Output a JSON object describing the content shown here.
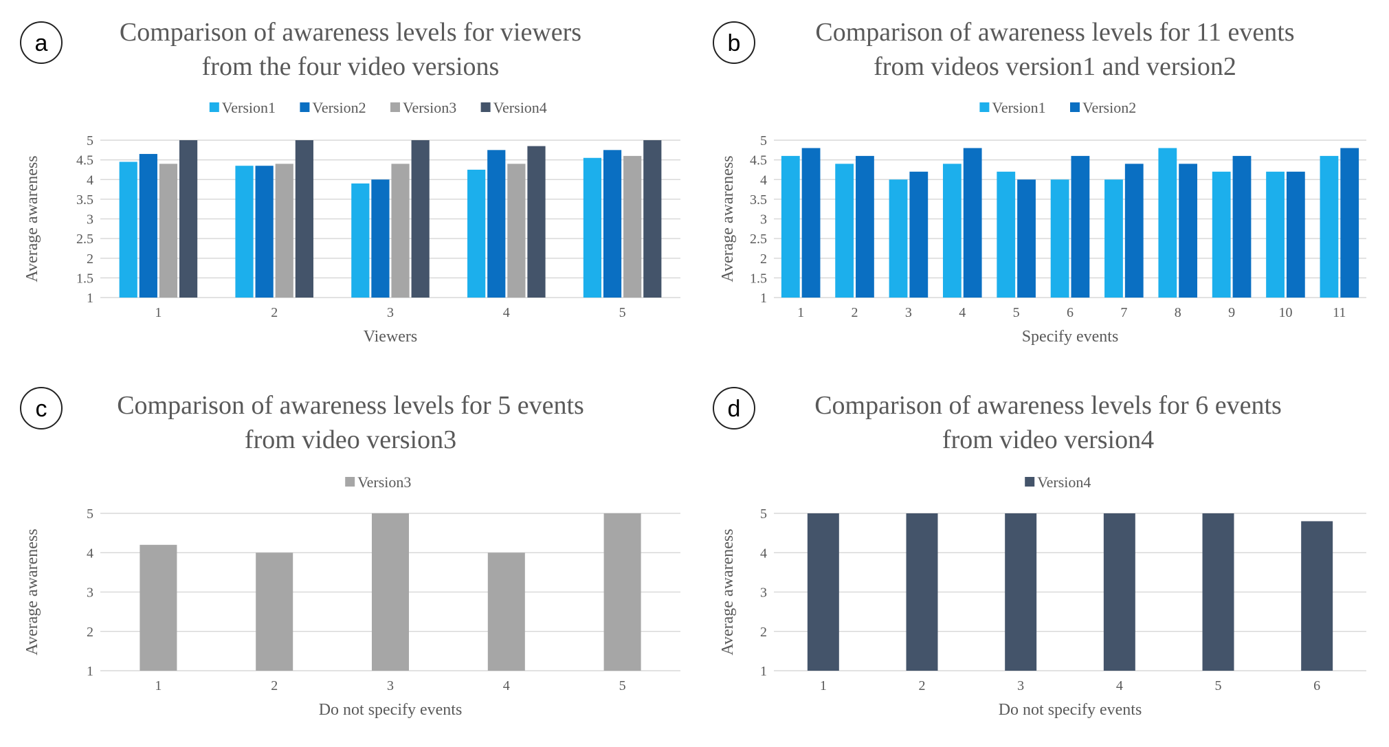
{
  "colors": {
    "version1": "#1CAFEC",
    "version2": "#0A6FC2",
    "version3": "#A6A6A6",
    "version4": "#44546A",
    "grid": "#D9D9D9",
    "text": "#595959",
    "title": "#595959"
  },
  "chart_data": [
    {
      "type": "bar",
      "panel_label": "a",
      "title_lines": [
        "Comparison of awareness levels for viewers",
        "from the four video versions"
      ],
      "xlabel": "Viewers",
      "ylabel": "Average awareness",
      "categories": [
        "1",
        "2",
        "3",
        "4",
        "5"
      ],
      "ylim": [
        1,
        5
      ],
      "yticks": [
        "1",
        "1.5",
        "2",
        "2.5",
        "3",
        "3.5",
        "4",
        "4.5",
        "5"
      ],
      "legend_position": "top-center",
      "series": [
        {
          "name": "Version1",
          "color_key": "version1",
          "values": [
            4.45,
            4.35,
            3.9,
            4.25,
            4.55
          ]
        },
        {
          "name": "Version2",
          "color_key": "version2",
          "values": [
            4.65,
            4.35,
            4.0,
            4.75,
            4.75
          ]
        },
        {
          "name": "Version3",
          "color_key": "version3",
          "values": [
            4.4,
            4.4,
            4.4,
            4.4,
            4.6
          ]
        },
        {
          "name": "Version4",
          "color_key": "version4",
          "values": [
            5.0,
            5.0,
            5.0,
            4.85,
            5.0
          ]
        }
      ]
    },
    {
      "type": "bar",
      "panel_label": "b",
      "title_lines": [
        "Comparison of awareness levels for 11 events",
        "from videos version1 and version2"
      ],
      "xlabel": "Specify events",
      "ylabel": "Average awareness",
      "categories": [
        "1",
        "2",
        "3",
        "4",
        "5",
        "6",
        "7",
        "8",
        "9",
        "10",
        "11"
      ],
      "ylim": [
        1,
        5
      ],
      "yticks": [
        "1",
        "1.5",
        "2",
        "2.5",
        "3",
        "3.5",
        "4",
        "4.5",
        "5"
      ],
      "legend_position": "top-center",
      "series": [
        {
          "name": "Version1",
          "color_key": "version1",
          "values": [
            4.6,
            4.4,
            4.0,
            4.4,
            4.2,
            4.0,
            4.0,
            4.8,
            4.2,
            4.2,
            4.6
          ]
        },
        {
          "name": "Version2",
          "color_key": "version2",
          "values": [
            4.8,
            4.6,
            4.2,
            4.8,
            4.0,
            4.6,
            4.4,
            4.4,
            4.6,
            4.2,
            4.8
          ]
        }
      ]
    },
    {
      "type": "bar",
      "panel_label": "c",
      "title_lines": [
        "Comparison of awareness levels for 5 events",
        "from video version3"
      ],
      "xlabel": "Do not specify events",
      "ylabel": "Average awareness",
      "categories": [
        "1",
        "2",
        "3",
        "4",
        "5"
      ],
      "ylim": [
        1,
        5
      ],
      "yticks": [
        "1",
        "2",
        "3",
        "4",
        "5"
      ],
      "legend_position": "top-center",
      "series": [
        {
          "name": "Version3",
          "color_key": "version3",
          "values": [
            4.2,
            4.0,
            5.0,
            4.0,
            5.0
          ]
        }
      ]
    },
    {
      "type": "bar",
      "panel_label": "d",
      "title_lines": [
        "Comparison of awareness levels for 6 events",
        "from video version4"
      ],
      "xlabel": "Do not specify events",
      "ylabel": "Average awareness",
      "categories": [
        "1",
        "2",
        "3",
        "4",
        "5",
        "6"
      ],
      "ylim": [
        1,
        5
      ],
      "yticks": [
        "1",
        "2",
        "3",
        "4",
        "5"
      ],
      "legend_position": "top-center",
      "series": [
        {
          "name": "Version4",
          "color_key": "version4",
          "values": [
            5.0,
            5.0,
            5.0,
            5.0,
            5.0,
            4.8
          ]
        }
      ]
    }
  ]
}
